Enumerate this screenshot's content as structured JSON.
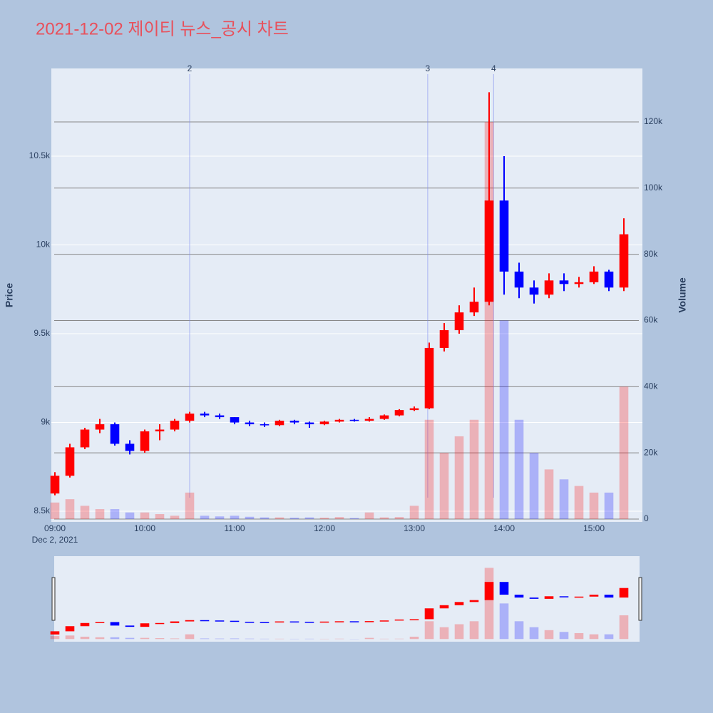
{
  "chart_data": {
    "type": "candlestick",
    "title": "2021-12-02 제이티 뉴스_공시 차트",
    "x": [
      "09:00",
      "09:10",
      "09:20",
      "09:30",
      "09:40",
      "09:50",
      "10:00",
      "10:10",
      "10:20",
      "10:30",
      "10:40",
      "10:50",
      "11:00",
      "11:10",
      "11:20",
      "11:30",
      "11:40",
      "11:50",
      "12:00",
      "12:10",
      "12:20",
      "12:30",
      "12:40",
      "12:50",
      "13:00",
      "13:10",
      "13:20",
      "13:30",
      "13:40",
      "13:50",
      "14:00",
      "14:10",
      "14:20",
      "14:30",
      "14:40",
      "14:50",
      "15:00",
      "15:10",
      "15:20"
    ],
    "open": [
      8600,
      8700,
      8860,
      8960,
      8990,
      8880,
      8840,
      8950,
      8960,
      9010,
      9050,
      9040,
      9030,
      9000,
      8990,
      8985,
      9010,
      9000,
      8990,
      9005,
      9015,
      9010,
      9020,
      9040,
      9070,
      9080,
      9420,
      9520,
      9620,
      9680,
      10250,
      9850,
      9760,
      9720,
      9800,
      9780,
      9790,
      9850,
      9760
    ],
    "high": [
      8720,
      8880,
      8970,
      9020,
      9000,
      8900,
      8960,
      8990,
      9020,
      9060,
      9060,
      9050,
      9030,
      9010,
      9000,
      9015,
      9015,
      9005,
      9010,
      9020,
      9020,
      9030,
      9045,
      9075,
      9090,
      9450,
      9560,
      9660,
      9760,
      10860,
      10500,
      9900,
      9800,
      9840,
      9840,
      9820,
      9880,
      9860,
      10150
    ],
    "low": [
      8590,
      8690,
      8850,
      8940,
      8870,
      8820,
      8830,
      8900,
      8950,
      9000,
      9030,
      9020,
      8990,
      8980,
      8975,
      8980,
      8990,
      8970,
      8985,
      9000,
      9005,
      9005,
      9015,
      9035,
      9065,
      9075,
      9400,
      9500,
      9600,
      9660,
      9720,
      9700,
      9670,
      9700,
      9740,
      9760,
      9780,
      9740,
      9740
    ],
    "close": [
      8700,
      8860,
      8960,
      8990,
      8880,
      8840,
      8950,
      8960,
      9010,
      9050,
      9040,
      9030,
      9000,
      8990,
      8985,
      9010,
      9000,
      8990,
      9005,
      9015,
      9010,
      9020,
      9040,
      9070,
      9080,
      9420,
      9520,
      9620,
      9680,
      10250,
      9850,
      9760,
      9720,
      9800,
      9780,
      9790,
      9850,
      9760,
      10060
    ],
    "volume": [
      5000,
      6000,
      4000,
      3000,
      3000,
      2000,
      2000,
      1500,
      1000,
      8000,
      1000,
      800,
      1000,
      700,
      500,
      500,
      400,
      500,
      400,
      600,
      300,
      2000,
      500,
      600,
      4000,
      30000,
      20000,
      25000,
      30000,
      120000,
      60000,
      30000,
      20000,
      15000,
      12000,
      10000,
      8000,
      8000,
      40000
    ],
    "increasing_color": "#ff0000",
    "decreasing_color": "#0000ff",
    "xlim": [
      "09:00",
      "15:30"
    ],
    "xticks": [
      "09:00",
      "10:00",
      "11:00",
      "12:00",
      "13:00",
      "14:00",
      "15:00"
    ],
    "date_label": "Dec 2, 2021",
    "ylabel": "Price",
    "y2label": "Volume",
    "ylim": [
      8440,
      10994
    ],
    "yticks": [
      {
        "value": 8500,
        "label": "8.5k"
      },
      {
        "value": 9000,
        "label": "9k"
      },
      {
        "value": 9500,
        "label": "9.5k"
      },
      {
        "value": 10000,
        "label": "10k"
      },
      {
        "value": 10500,
        "label": "10.5k"
      }
    ],
    "y2lim": [
      -860,
      136150
    ],
    "y2ticks": [
      0,
      {
        "value": 20000,
        "label": "20k"
      },
      {
        "value": 40000,
        "label": "40k"
      },
      {
        "value": 60000,
        "label": "60k"
      },
      {
        "value": 80000,
        "label": "80k"
      },
      {
        "value": 100000,
        "label": "100k"
      },
      {
        "value": 120000,
        "label": "120k"
      }
    ],
    "events": [
      {
        "x": "10:30",
        "label": "2"
      },
      {
        "x": "13:09",
        "label": "3"
      },
      {
        "x": "13:53",
        "label": "4"
      }
    ],
    "grid": true
  }
}
